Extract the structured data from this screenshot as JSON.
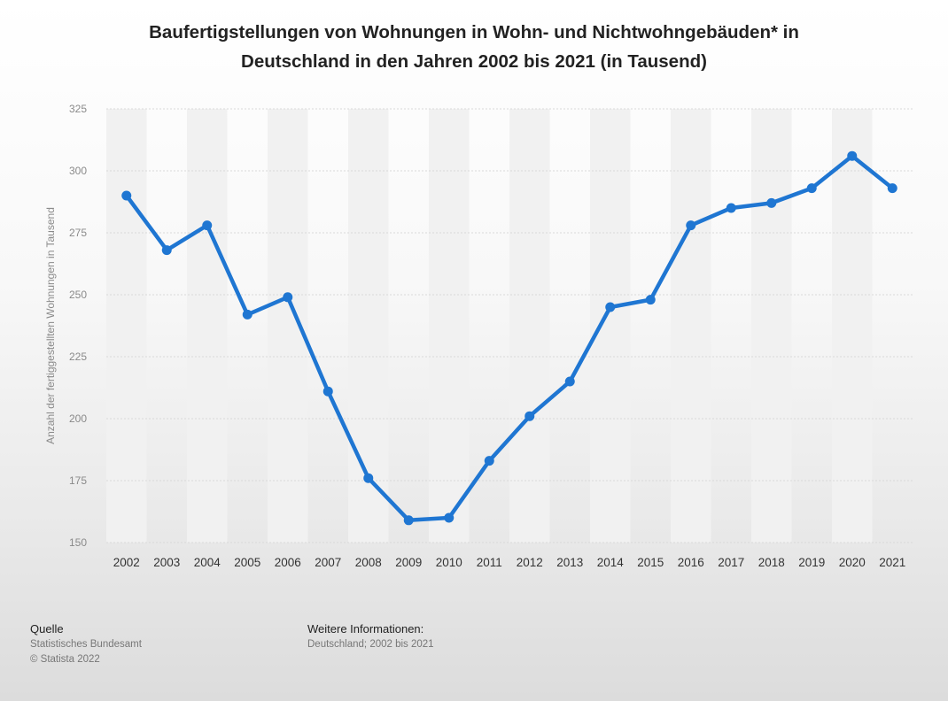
{
  "title_line1": "Baufertigstellungen von Wohnungen in Wohn- und Nichtwohngebäuden* in",
  "title_line2": "Deutschland in den Jahren 2002 bis 2021 (in Tausend)",
  "footer": {
    "source_heading": "Quelle",
    "source_name": "Statistisches Bundesamt",
    "copyright": "© Statista 2022",
    "info_heading": "Weitere Informationen:",
    "info_text": "Deutschland; 2002 bis 2021"
  },
  "colors": {
    "line": "#1f76d2",
    "grid": "#d9d9d9",
    "band": "#f1f1f1"
  },
  "chart_data": {
    "type": "line",
    "title": "Baufertigstellungen von Wohnungen in Wohn- und Nichtwohngebäuden* in Deutschland in den Jahren 2002 bis 2021 (in Tausend)",
    "ylabel": "Anzahl der fertiggestellten Wohnungen in Tausend",
    "xlabel": "",
    "categories": [
      "2002",
      "2003",
      "2004",
      "2005",
      "2006",
      "2007",
      "2008",
      "2009",
      "2010",
      "2011",
      "2012",
      "2013",
      "2014",
      "2015",
      "2016",
      "2017",
      "2018",
      "2019",
      "2020",
      "2021"
    ],
    "values": [
      290,
      268,
      278,
      242,
      249,
      211,
      176,
      159,
      160,
      183,
      201,
      215,
      245,
      248,
      278,
      285,
      287,
      293,
      306,
      293
    ],
    "yticks": [
      150,
      175,
      200,
      225,
      250,
      275,
      300,
      325
    ],
    "ylim": [
      150,
      325
    ],
    "grid": true,
    "legend": "none"
  }
}
